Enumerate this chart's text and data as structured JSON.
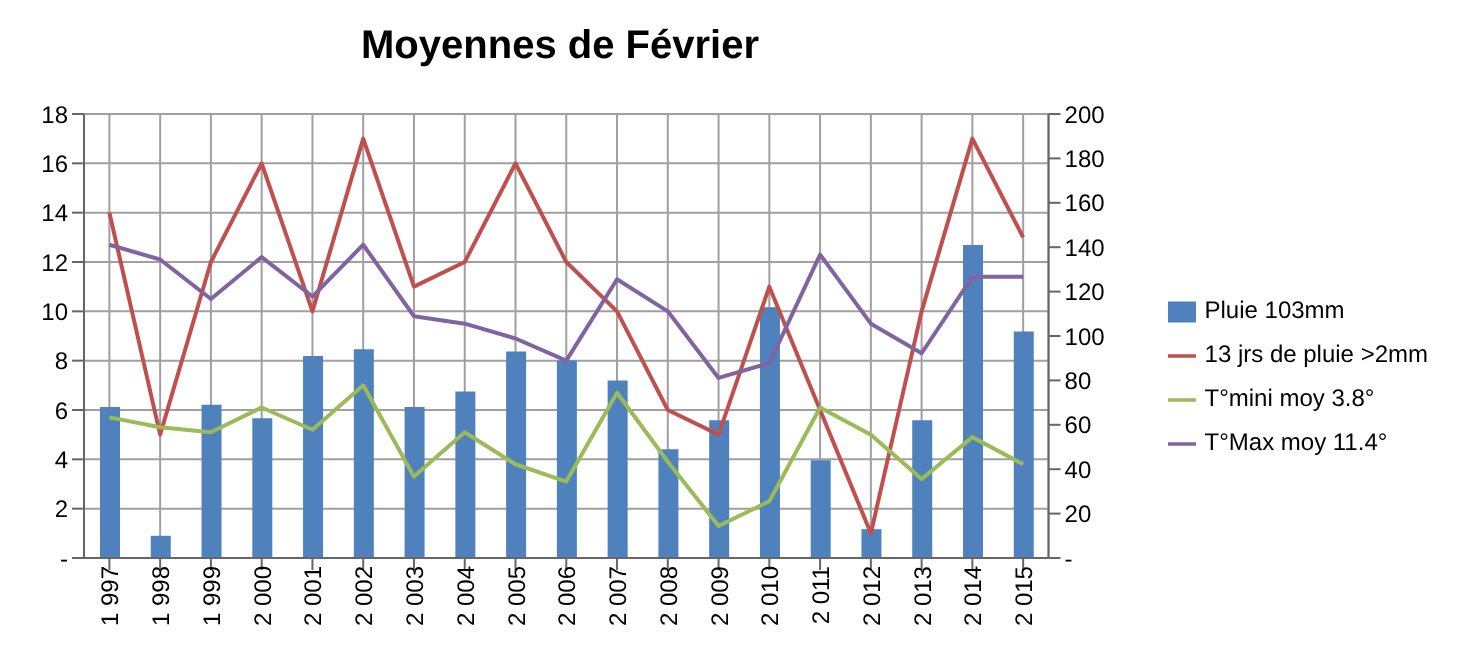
{
  "chart_data": {
    "type": "bar",
    "title": "Moyennes de Février",
    "categories": [
      "1 997",
      "1 998",
      "1 999",
      "2 000",
      "2 001",
      "2 002",
      "2 003",
      "2 004",
      "2 005",
      "2 006",
      "2 007",
      "2 008",
      "2 009",
      "2 010",
      "2 011",
      "2 012",
      "2 013",
      "2 014",
      "2 015"
    ],
    "series": [
      {
        "name": "Pluie 103mm",
        "axis": "y2",
        "color": "#4f81bd",
        "values": [
          68,
          10,
          69,
          63,
          91,
          94,
          68,
          75,
          93,
          89,
          80,
          49,
          62,
          113,
          44,
          13,
          62,
          141,
          102
        ]
      },
      {
        "name": "13 jrs de pluie >2mm",
        "type": "line",
        "color": "#c0504d",
        "values": [
          14,
          5,
          12,
          16,
          10,
          17,
          11,
          12,
          16,
          12,
          10,
          6,
          5,
          11,
          6,
          1,
          10,
          17,
          13
        ]
      },
      {
        "name": "T°mini moy 3.8°",
        "type": "line",
        "color": "#9bbb59",
        "values": [
          5.7,
          5.3,
          5.1,
          6.1,
          5.2,
          7.0,
          3.3,
          5.1,
          3.8,
          3.1,
          6.7,
          3.9,
          1.3,
          2.3,
          6.1,
          5.0,
          3.2,
          4.9,
          3.8
        ]
      },
      {
        "name": "T°Max moy 11.4°",
        "type": "line",
        "color": "#8064a2",
        "values": [
          12.7,
          12.1,
          10.5,
          12.2,
          10.6,
          12.7,
          9.8,
          9.5,
          8.9,
          8.0,
          11.3,
          10.0,
          7.3,
          7.9,
          12.3,
          9.5,
          8.3,
          11.4,
          11.4
        ]
      }
    ],
    "ylim": [
      0,
      18
    ],
    "yticks": [
      {
        "value": 0,
        "label": "-"
      },
      2,
      4,
      6,
      8,
      10,
      12,
      14,
      16,
      18
    ],
    "y2lim": [
      0,
      200
    ],
    "y2ticks": [
      {
        "value": 0,
        "label": "-"
      },
      20,
      40,
      60,
      80,
      100,
      120,
      140,
      160,
      180,
      200
    ],
    "grid": true,
    "legend": "right",
    "marker": "none",
    "line_style": "solid"
  }
}
